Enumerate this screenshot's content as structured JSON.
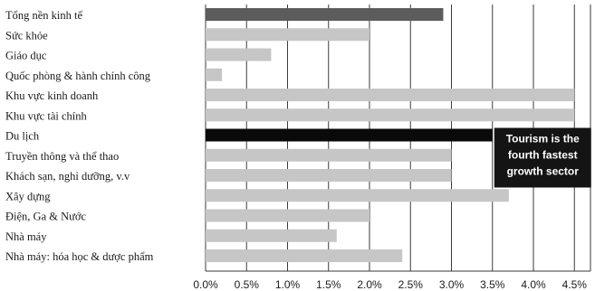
{
  "chart_data": {
    "type": "bar",
    "orientation": "horizontal",
    "categories": [
      "Tổng nền kinh tế",
      "Sức khỏe",
      "Giáo dục",
      "Quốc phòng & hành chính công",
      "Khu vực kinh doanh",
      "Khu vực tài chính",
      "Du lịch",
      "Truyền thông và thể thao",
      "Khách sạn, nghỉ dưỡng, v.v",
      "Xây dựng",
      "Điện, Ga & Nước",
      "Nhà máy",
      "Nhà máy: hóa học & dược phẩm"
    ],
    "values": [
      2.9,
      2.0,
      0.8,
      0.2,
      4.5,
      4.5,
      3.5,
      3.0,
      3.0,
      3.7,
      2.0,
      1.6,
      2.4
    ],
    "highlight_index": 6,
    "xlim": [
      0,
      4.8
    ],
    "xticks": [
      "0.0%",
      "0.5%",
      "1.0%",
      "1.5%",
      "2.0%",
      "2.5%",
      "3.0%",
      "3.5%",
      "4.0%",
      "4.5%"
    ],
    "grid": "vertical",
    "title": "",
    "xlabel": "",
    "ylabel": "",
    "annotation": {
      "lines": [
        "Tourism is the",
        "fourth fastest",
        "growth sector"
      ]
    },
    "colors": {
      "bar": "#c6c6c6",
      "bar_first": "#5c5c5c",
      "bar_highlight": "#0a0a0a",
      "grid": "#3a3a3a",
      "callout_bg": "#141414"
    }
  }
}
